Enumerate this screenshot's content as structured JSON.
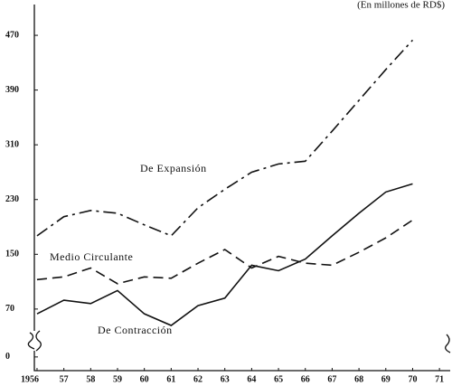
{
  "chart_data": {
    "type": "line",
    "subtitle": "(En millones de RD$)",
    "x": [
      1956,
      1957,
      1958,
      1959,
      1960,
      1961,
      1962,
      1963,
      1964,
      1965,
      1966,
      1967,
      1968,
      1969,
      1970
    ],
    "xlim": [
      1955.9,
      1971.4
    ],
    "xticks": [
      {
        "value": 1956,
        "label": "1956"
      },
      {
        "value": 1957,
        "label": "57"
      },
      {
        "value": 1958,
        "label": "58"
      },
      {
        "value": 1959,
        "label": "59"
      },
      {
        "value": 1960,
        "label": "60"
      },
      {
        "value": 1961,
        "label": "61"
      },
      {
        "value": 1962,
        "label": "62"
      },
      {
        "value": 1963,
        "label": "63"
      },
      {
        "value": 1964,
        "label": "64"
      },
      {
        "value": 1965,
        "label": "65"
      },
      {
        "value": 1966,
        "label": "66"
      },
      {
        "value": 1967,
        "label": "67"
      },
      {
        "value": 1968,
        "label": "68"
      },
      {
        "value": 1969,
        "label": "69"
      },
      {
        "value": 1970,
        "label": "70"
      },
      {
        "value": 1971,
        "label": "71"
      }
    ],
    "ylim": [
      -20,
      515
    ],
    "yticks": [
      0,
      70,
      150,
      230,
      310,
      390,
      470
    ],
    "series": [
      {
        "name": "De Expansión",
        "color": "#111111",
        "style": "dashdot",
        "values": [
          177,
          205,
          214,
          210,
          193,
          177,
          218,
          245,
          270,
          282,
          286,
          330,
          375,
          420,
          463
        ]
      },
      {
        "name": "Medio Circulante",
        "color": "#111111",
        "style": "dashed",
        "values": [
          113,
          117,
          130,
          107,
          117,
          115,
          137,
          157,
          130,
          147,
          137,
          134,
          153,
          174,
          200
        ]
      },
      {
        "name": "De Contracción",
        "color": "#111111",
        "style": "solid",
        "values": [
          63,
          83,
          78,
          97,
          63,
          46,
          75,
          86,
          134,
          126,
          143,
          177,
          210,
          241,
          253
        ]
      }
    ]
  }
}
